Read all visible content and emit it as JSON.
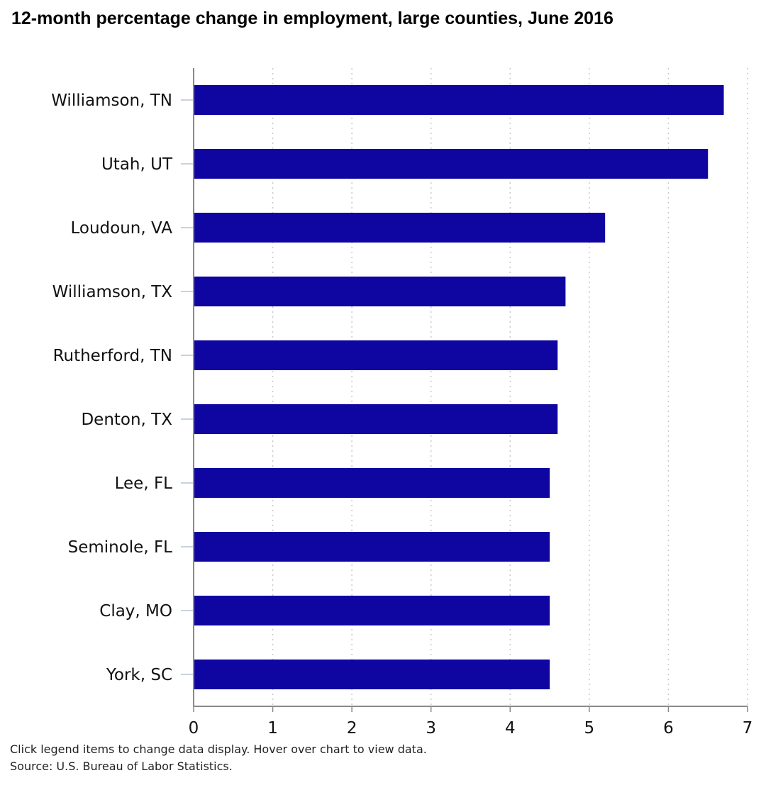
{
  "chart_data": {
    "type": "bar",
    "orientation": "horizontal",
    "title": "12-month percentage change in employment, large counties, June 2016",
    "categories": [
      "Williamson, TN",
      "Utah, UT",
      "Loudoun, VA",
      "Williamson, TX",
      "Rutherford, TN",
      "Denton, TX",
      "Lee, FL",
      "Seminole, FL",
      "Clay, MO",
      "York, SC"
    ],
    "values": [
      6.7,
      6.5,
      5.2,
      4.7,
      4.6,
      4.6,
      4.5,
      4.5,
      4.5,
      4.5
    ],
    "xlim": [
      0,
      7
    ],
    "xticks": [
      "0",
      "1",
      "2",
      "3",
      "4",
      "5",
      "6",
      "7"
    ],
    "xlabel": "",
    "ylabel": "",
    "grid": "vertical-dotted",
    "bar_color": "#0f05a0"
  },
  "footer": {
    "hint": "Click legend items to change data display. Hover over chart to view data.",
    "source": "Source: U.S. Bureau of Labor Statistics."
  }
}
